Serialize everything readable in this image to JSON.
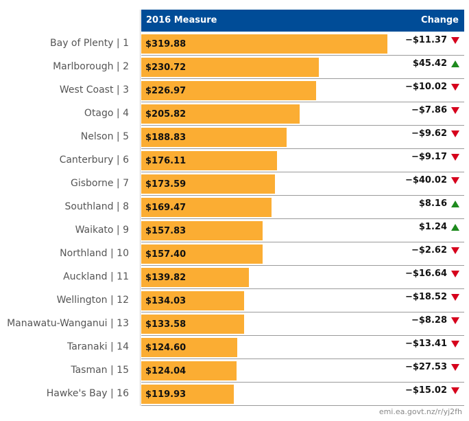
{
  "header": {
    "measure_label": "2016 Measure",
    "change_label": "Change"
  },
  "source_text": "emi.ea.govt.nz/r/yj2fh",
  "colors": {
    "header_bg": "#004c97",
    "bar": "#fbad33",
    "up": "#1e8a1e",
    "down": "#d6001c"
  },
  "chart_data": {
    "type": "bar",
    "orientation": "horizontal",
    "categories": [
      "Bay of Plenty | 1",
      "Marlborough | 2",
      "West Coast | 3",
      "Otago | 4",
      "Nelson | 5",
      "Canterbury | 6",
      "Gisborne | 7",
      "Southland | 8",
      "Waikato | 9",
      "Northland | 10",
      "Auckland | 11",
      "Wellington | 12",
      "Manawatu-Wanganui | 13",
      "Taranaki | 14",
      "Tasman | 15",
      "Hawke's Bay | 16"
    ],
    "values": [
      319.88,
      230.72,
      226.97,
      205.82,
      188.83,
      176.11,
      173.59,
      169.47,
      157.83,
      157.4,
      139.82,
      134.03,
      133.58,
      124.6,
      124.04,
      119.93
    ],
    "value_labels": [
      "$319.88",
      "$230.72",
      "$226.97",
      "$205.82",
      "$188.83",
      "$176.11",
      "$173.59",
      "$169.47",
      "$157.83",
      "$157.40",
      "$139.82",
      "$134.03",
      "$133.58",
      "$124.60",
      "$124.04",
      "$119.93"
    ],
    "change": [
      -11.37,
      45.42,
      -10.02,
      -7.86,
      -9.62,
      -9.17,
      -40.02,
      8.16,
      1.24,
      -2.62,
      -16.64,
      -18.52,
      -8.28,
      -13.41,
      -27.53,
      -15.02
    ],
    "change_labels": [
      "−$11.37",
      "$45.42",
      "−$10.02",
      "−$7.86",
      "−$9.62",
      "−$9.17",
      "−$40.02",
      "$8.16",
      "$1.24",
      "−$2.62",
      "−$16.64",
      "−$18.52",
      "−$8.28",
      "−$13.41",
      "−$27.53",
      "−$15.02"
    ],
    "change_direction": [
      "down",
      "up",
      "down",
      "down",
      "down",
      "down",
      "down",
      "up",
      "up",
      "down",
      "down",
      "down",
      "down",
      "down",
      "down",
      "down"
    ],
    "xlim": [
      0,
      319.88
    ]
  }
}
